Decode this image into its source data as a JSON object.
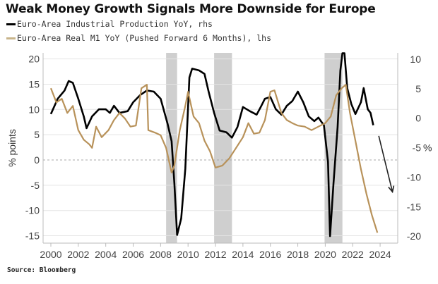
{
  "chart_data": {
    "type": "line",
    "title": "Weak Money Growth Signals More Downside for Europe",
    "source": "Source: Bloomberg",
    "ylabel_left": "% points",
    "ylabel_right": "%",
    "xlim": [
      1999.45,
      2025.3
    ],
    "ylim_left": [
      -16.5,
      21
    ],
    "ylim_right": [
      -21,
      11
    ],
    "x_ticks": [
      2000,
      2002,
      2004,
      2006,
      2008,
      2010,
      2012,
      2014,
      2016,
      2018,
      2020,
      2022,
      2024
    ],
    "y_ticks_left": [
      20,
      15,
      10,
      5,
      0,
      -5,
      -10,
      -15
    ],
    "y_ticks_right": [
      10,
      5,
      0,
      -5,
      -10,
      -15,
      -20
    ],
    "zero_line": "dashed",
    "grid": true,
    "legend_position": "top-left",
    "recession_bands": [
      [
        2008.4,
        2009.2
      ],
      [
        2011.9,
        2013.2
      ],
      [
        2019.95,
        2021.25
      ]
    ],
    "series": [
      {
        "name": "Euro-Area Industrial Production YoY, rhs",
        "axis": "right",
        "color": "#000000",
        "points": [
          [
            2000.0,
            0.7
          ],
          [
            2000.5,
            3.3
          ],
          [
            2001.0,
            4.7
          ],
          [
            2001.3,
            6.3
          ],
          [
            2001.6,
            6.0
          ],
          [
            2002.0,
            3.3
          ],
          [
            2002.4,
            0.3
          ],
          [
            2002.6,
            -1.7
          ],
          [
            2003.0,
            0.3
          ],
          [
            2003.5,
            1.5
          ],
          [
            2004.0,
            1.5
          ],
          [
            2004.3,
            0.9
          ],
          [
            2004.6,
            2.1
          ],
          [
            2005.0,
            0.9
          ],
          [
            2005.6,
            1.2
          ],
          [
            2006.0,
            2.7
          ],
          [
            2006.5,
            3.9
          ],
          [
            2007.0,
            4.7
          ],
          [
            2007.5,
            4.5
          ],
          [
            2008.0,
            3.3
          ],
          [
            2008.5,
            -0.9
          ],
          [
            2008.8,
            -3.9
          ],
          [
            2009.0,
            -11.0
          ],
          [
            2009.2,
            -19.8
          ],
          [
            2009.5,
            -17.0
          ],
          [
            2009.8,
            -8.6
          ],
          [
            2010.1,
            6.9
          ],
          [
            2010.3,
            8.4
          ],
          [
            2010.8,
            8.1
          ],
          [
            2011.2,
            7.5
          ],
          [
            2011.5,
            4.5
          ],
          [
            2011.9,
            0.9
          ],
          [
            2012.3,
            -2.1
          ],
          [
            2012.8,
            -2.4
          ],
          [
            2013.2,
            -3.3
          ],
          [
            2013.6,
            -1.5
          ],
          [
            2014.0,
            1.9
          ],
          [
            2014.5,
            1.2
          ],
          [
            2015.0,
            0.6
          ],
          [
            2015.3,
            1.9
          ],
          [
            2015.6,
            3.3
          ],
          [
            2016.0,
            3.6
          ],
          [
            2016.4,
            1.5
          ],
          [
            2016.8,
            0.6
          ],
          [
            2017.2,
            2.1
          ],
          [
            2017.6,
            2.9
          ],
          [
            2018.0,
            4.5
          ],
          [
            2018.4,
            2.7
          ],
          [
            2018.8,
            0.3
          ],
          [
            2019.2,
            -0.5
          ],
          [
            2019.5,
            0.1
          ],
          [
            2019.9,
            -1.2
          ],
          [
            2020.2,
            -7.4
          ],
          [
            2020.35,
            -20.0
          ],
          [
            2020.6,
            -11.0
          ],
          [
            2020.9,
            -1.5
          ],
          [
            2021.1,
            8.1
          ],
          [
            2021.25,
            11.0
          ],
          [
            2021.4,
            11.0
          ],
          [
            2021.6,
            5.1
          ],
          [
            2021.9,
            2.4
          ],
          [
            2022.2,
            0.7
          ],
          [
            2022.6,
            2.7
          ],
          [
            2022.8,
            5.1
          ],
          [
            2023.1,
            1.5
          ],
          [
            2023.3,
            0.9
          ],
          [
            2023.5,
            -1.2
          ]
        ]
      },
      {
        "name": "Euro-Area Real M1 YoY (Pushed Forward 6 Months), lhs",
        "axis": "left",
        "color": "#b8925a",
        "points": [
          [
            2000.0,
            14.2
          ],
          [
            2000.4,
            11.4
          ],
          [
            2000.8,
            12.1
          ],
          [
            2001.2,
            9.3
          ],
          [
            2001.6,
            10.7
          ],
          [
            2002.0,
            5.9
          ],
          [
            2002.4,
            4.0
          ],
          [
            2002.8,
            3.1
          ],
          [
            2003.0,
            2.4
          ],
          [
            2003.3,
            6.6
          ],
          [
            2003.7,
            4.5
          ],
          [
            2004.2,
            5.9
          ],
          [
            2004.6,
            7.9
          ],
          [
            2005.0,
            9.3
          ],
          [
            2005.4,
            8.2
          ],
          [
            2005.8,
            6.6
          ],
          [
            2006.2,
            6.8
          ],
          [
            2006.6,
            14.2
          ],
          [
            2007.0,
            14.9
          ],
          [
            2007.1,
            5.9
          ],
          [
            2007.6,
            5.4
          ],
          [
            2008.0,
            4.9
          ],
          [
            2008.4,
            2.4
          ],
          [
            2008.8,
            -2.5
          ],
          [
            2009.0,
            -1.1
          ],
          [
            2009.4,
            5.9
          ],
          [
            2009.8,
            10.7
          ],
          [
            2010.0,
            13.5
          ],
          [
            2010.4,
            8.6
          ],
          [
            2010.8,
            7.3
          ],
          [
            2011.2,
            3.8
          ],
          [
            2011.6,
            1.7
          ],
          [
            2012.0,
            -1.5
          ],
          [
            2012.5,
            -1.1
          ],
          [
            2013.0,
            0.3
          ],
          [
            2013.5,
            2.4
          ],
          [
            2014.0,
            4.5
          ],
          [
            2014.4,
            7.3
          ],
          [
            2014.8,
            5.2
          ],
          [
            2015.2,
            5.4
          ],
          [
            2015.6,
            7.9
          ],
          [
            2016.0,
            13.5
          ],
          [
            2016.3,
            13.8
          ],
          [
            2016.8,
            9.3
          ],
          [
            2017.2,
            7.9
          ],
          [
            2017.6,
            7.3
          ],
          [
            2018.0,
            6.8
          ],
          [
            2018.5,
            6.6
          ],
          [
            2019.0,
            5.9
          ],
          [
            2019.5,
            6.6
          ],
          [
            2020.0,
            7.3
          ],
          [
            2020.4,
            8.6
          ],
          [
            2020.8,
            12.8
          ],
          [
            2021.2,
            14.2
          ],
          [
            2021.5,
            14.9
          ],
          [
            2021.8,
            9.3
          ],
          [
            2022.2,
            3.8
          ],
          [
            2022.6,
            -1.8
          ],
          [
            2023.0,
            -6.7
          ],
          [
            2023.4,
            -10.9
          ],
          [
            2023.8,
            -14.4
          ]
        ]
      }
    ],
    "annotations": [
      {
        "type": "arrow",
        "description": "downward arrow indicating further decline",
        "from": [
          2023.9,
          -3.0
        ],
        "to": [
          2024.9,
          -12.5
        ],
        "axis": "right"
      }
    ]
  }
}
